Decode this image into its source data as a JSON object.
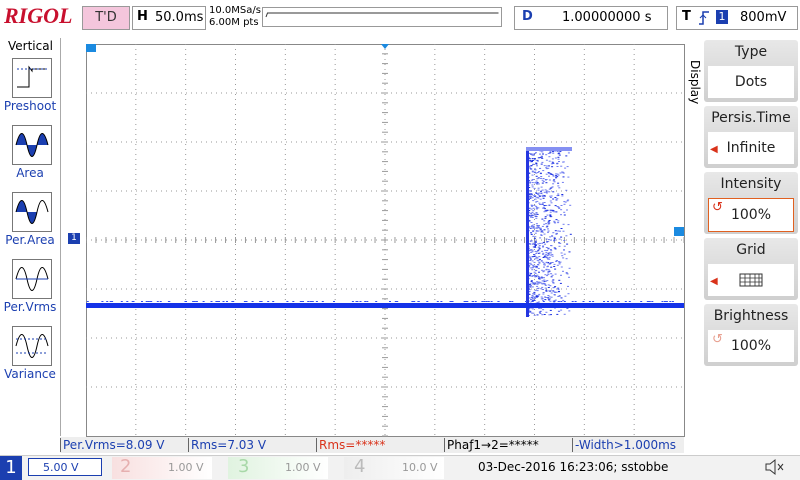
{
  "header": {
    "logo": "RIGOL",
    "run_status": "T'D",
    "timebase_label": "H",
    "timebase": "50.0ms",
    "sample_rate": "10.0MSa/s",
    "memory_depth": "6.00M pts",
    "delay_label": "D",
    "delay": "1.00000000 s",
    "trigger_label": "T",
    "trigger_source": "1",
    "trigger_level": "800mV"
  },
  "left_menu": {
    "title": "Vertical",
    "items": [
      "Preshoot",
      "Area",
      "Per.Area",
      "Per.Vrms",
      "Variance"
    ]
  },
  "right_menu": {
    "title": "Display",
    "items": [
      {
        "label": "Type",
        "value": "Dots"
      },
      {
        "label": "Persis.Time",
        "value": "Infinite"
      },
      {
        "label": "Intensity",
        "value": "100%"
      },
      {
        "label": "Grid"
      },
      {
        "label": "Brightness",
        "value": "100%"
      }
    ]
  },
  "measurements": [
    "Per.Vrms=8.09 V",
    "Rms=7.03 V",
    "Rms=*****",
    "Phaƒ1→2=*****",
    "-Width>1.000ms"
  ],
  "channels": [
    {
      "number": "1",
      "scale": "5.00 V"
    },
    {
      "number": "2",
      "scale": "1.00 V"
    },
    {
      "number": "3",
      "scale": "1.00 V"
    },
    {
      "number": "4",
      "scale": "10.0 V"
    }
  ],
  "status": "03-Dec-2016 16:23:06; sstobbe"
}
